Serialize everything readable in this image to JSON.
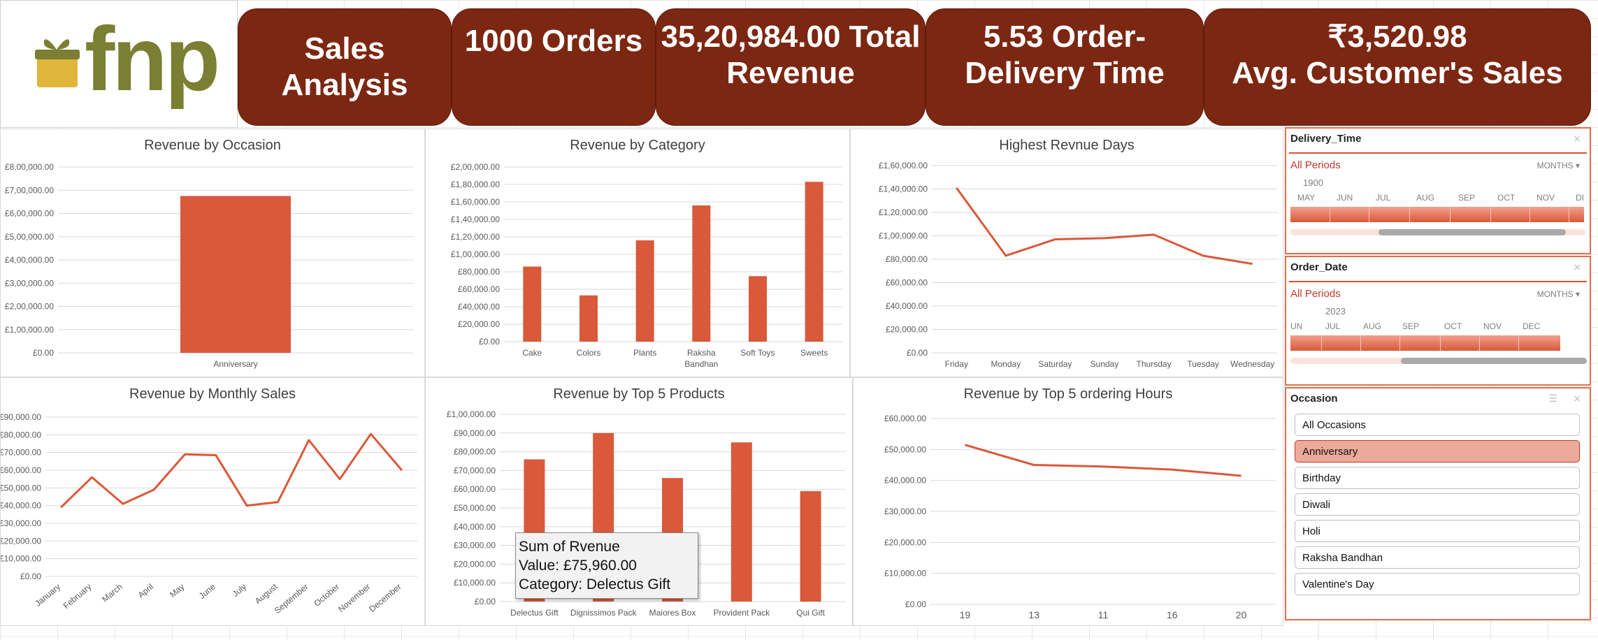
{
  "kpis": {
    "title": [
      "Sales",
      "Analysis"
    ],
    "orders": "1000 Orders",
    "revenue": [
      "35,20,984.00 Total",
      "Revenue"
    ],
    "delivery": [
      "5.53 Order-",
      "Delivery Time"
    ],
    "avg": [
      "₹3,520.98",
      "Avg. Customer's Sales"
    ]
  },
  "logo": {
    "text": "fnp",
    "icon": "gift-box-icon",
    "colors": {
      "text": "#7a7f33",
      "gift": "#e0b53c"
    }
  },
  "colors": {
    "accent": "#d9593a",
    "kpi_bg": "#7c2712",
    "slicer_border": "#e36c4a"
  },
  "slicers": {
    "delivery_time": {
      "title": "Delivery_Time",
      "period": "All Periods",
      "level": "MONTHS",
      "year": "1900",
      "months": [
        "MAY",
        "JUN",
        "JUL",
        "AUG",
        "SEP",
        "OCT",
        "NOV",
        "DI"
      ]
    },
    "order_date": {
      "title": "Order_Date",
      "period": "All Periods",
      "level": "MONTHS",
      "year": "2023",
      "months": [
        "UN",
        "JUL",
        "AUG",
        "SEP",
        "OCT",
        "NOV",
        "DEC"
      ]
    },
    "occasion": {
      "title": "Occasion",
      "items": [
        "All Occasions",
        "Anniversary",
        "Birthday",
        "Diwali",
        "Holi",
        "Raksha Bandhan",
        "Valentine's Day"
      ],
      "selected": "Anniversary"
    }
  },
  "tooltip": {
    "line1": "Sum of Rvenue",
    "line2": "Value: £75,960.00",
    "line3": "Category: Delectus Gift"
  },
  "chart_data": [
    {
      "id": "occasion",
      "type": "bar",
      "title": "Revenue by Occasion",
      "categories": [
        "Anniversary"
      ],
      "values": [
        675000
      ],
      "ylim": [
        0,
        800000
      ],
      "yticks": [
        "£0.00",
        "£1,00,000.00",
        "£2,00,000.00",
        "£3,00,000.00",
        "£4,00,000.00",
        "£5,00,000.00",
        "£6,00,000.00",
        "£7,00,000.00",
        "£8,00,000.00"
      ],
      "grid": true
    },
    {
      "id": "category",
      "type": "bar",
      "title": "Revenue by Category",
      "categories": [
        "Cake",
        "Colors",
        "Plants",
        "Raksha Bandhan",
        "Soft Toys",
        "Sweets"
      ],
      "values": [
        86000,
        53000,
        116000,
        156000,
        75000,
        183000
      ],
      "ylim": [
        0,
        200000
      ],
      "yticks": [
        "£0.00",
        "£20,000.00",
        "£40,000.00",
        "£60,000.00",
        "£80,000.00",
        "£1,00,000.00",
        "£1,20,000.00",
        "£1,40,000.00",
        "£1,60,000.00",
        "£1,80,000.00",
        "£2,00,000.00"
      ],
      "grid": true
    },
    {
      "id": "days",
      "type": "line",
      "title": "Highest Revnue Days",
      "categories": [
        "Friday",
        "Monday",
        "Saturday",
        "Sunday",
        "Thursday",
        "Tuesday",
        "Wednesday"
      ],
      "values": [
        141000,
        83000,
        97000,
        98000,
        101000,
        83000,
        76000
      ],
      "ylim": [
        0,
        160000
      ],
      "yticks": [
        "£0.00",
        "£20,000.00",
        "£40,000.00",
        "£60,000.00",
        "£80,000.00",
        "£1,00,000.00",
        "£1,20,000.00",
        "£1,40,000.00",
        "£1,60,000.00"
      ],
      "grid": true
    },
    {
      "id": "monthly",
      "type": "line",
      "title": "Revenue by Monthly Sales",
      "categories": [
        "January",
        "February",
        "March",
        "April",
        "May",
        "June",
        "July",
        "August",
        "September",
        "October",
        "November",
        "December"
      ],
      "values": [
        39000,
        56000,
        41000,
        49000,
        69000,
        68500,
        40000,
        42000,
        77000,
        55000,
        80500,
        60000
      ],
      "ylim": [
        0,
        90000
      ],
      "yticks": [
        "£0.00",
        "£10,000.00",
        "£20,000.00",
        "£30,000.00",
        "£40,000.00",
        "£50,000.00",
        "£60,000.00",
        "£70,000.00",
        "£80,000.00",
        "£90,000.00"
      ],
      "grid": true
    },
    {
      "id": "products",
      "type": "bar",
      "title": "Revenue  by Top 5 Products",
      "categories": [
        "Delectus Gift",
        "Dignissimos Pack",
        "Maiores Box",
        "Provident Pack",
        "Qui Gift"
      ],
      "values": [
        75960,
        90000,
        66000,
        85000,
        59000
      ],
      "ylim": [
        0,
        100000
      ],
      "yticks": [
        "£0.00",
        "£10,000.00",
        "£20,000.00",
        "£30,000.00",
        "£40,000.00",
        "£50,000.00",
        "£60,000.00",
        "£70,000.00",
        "£80,000.00",
        "£90,000.00",
        "£1,00,000.00"
      ],
      "grid": true
    },
    {
      "id": "hours",
      "type": "line",
      "title": "Revenue by Top 5 ordering Hours",
      "categories": [
        "19",
        "13",
        "11",
        "16",
        "20"
      ],
      "values": [
        51500,
        45000,
        44500,
        43500,
        41500
      ],
      "ylim": [
        0,
        60000
      ],
      "yticks": [
        "£0.00",
        "£10,000.00",
        "£20,000.00",
        "£30,000.00",
        "£40,000.00",
        "£50,000.00",
        "£60,000.00"
      ],
      "grid": true
    }
  ]
}
